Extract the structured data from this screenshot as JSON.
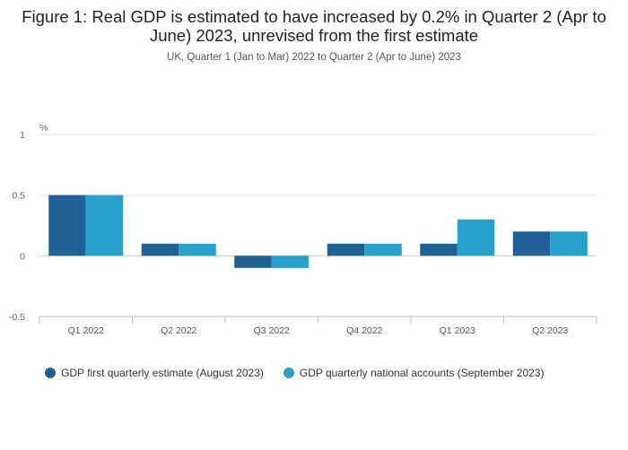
{
  "chart_data": {
    "type": "bar",
    "title": "Figure 1: Real GDP is estimated to have increased by 0.2% in Quarter 2 (Apr to June) 2023, unrevised from the first estimate",
    "subtitle": "UK, Quarter 1 (Jan to Mar) 2022 to Quarter 2 (Apr to June) 2023",
    "ylabel": "%",
    "xlabel": "",
    "ylim": [
      -0.5,
      1
    ],
    "yticks": [
      "1",
      "0.5",
      "0",
      "-0.5"
    ],
    "grid": true,
    "legend_position": "bottom-left",
    "categories": [
      "Q1 2022",
      "Q2 2022",
      "Q3 2022",
      "Q4 2022",
      "Q1 2023",
      "Q2 2023"
    ],
    "series": [
      {
        "name": "GDP first quarterly estimate (August 2023)",
        "color": "#206095",
        "values": [
          0.5,
          0.1,
          -0.1,
          0.1,
          0.1,
          0.2
        ]
      },
      {
        "name": "GDP quarterly national accounts (September 2023)",
        "color": "#27a0cc",
        "values": [
          0.5,
          0.1,
          -0.1,
          0.1,
          0.3,
          0.2
        ]
      }
    ]
  }
}
